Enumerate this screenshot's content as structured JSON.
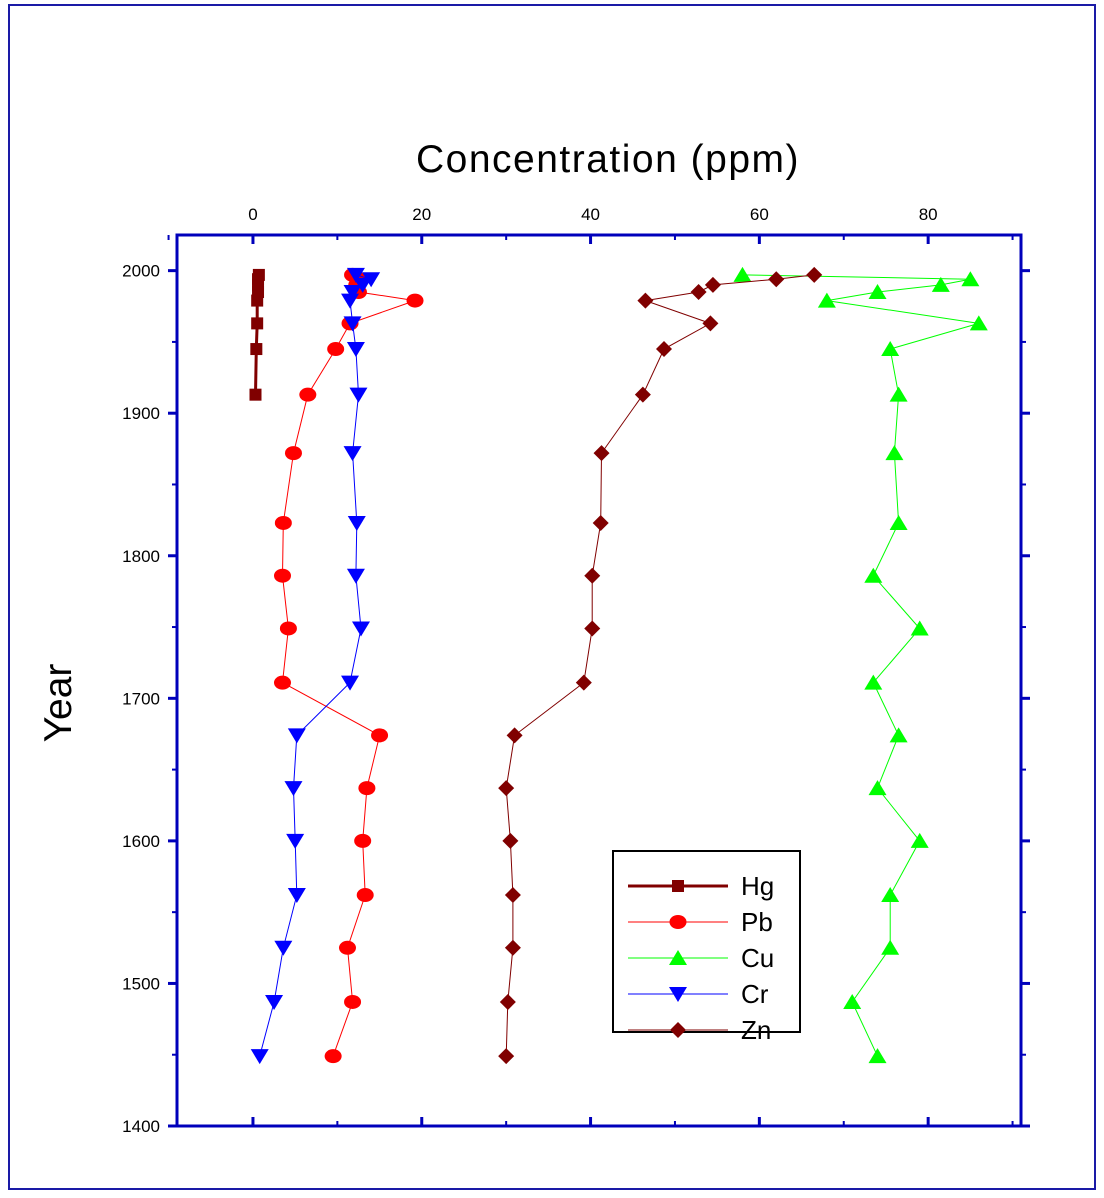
{
  "chart_data": {
    "type": "line",
    "xlabel": "Concentration (ppm)",
    "ylabel": "Year",
    "xlim": [
      -9,
      91
    ],
    "ylim": [
      1400,
      2025
    ],
    "x_ticks": [
      "0",
      "20",
      "40",
      "60",
      "80"
    ],
    "y_ticks": [
      "1400",
      "1500",
      "1600",
      "1700",
      "1800",
      "1900",
      "2000"
    ],
    "x_axis_position": "top",
    "legend_position": "bottom-right",
    "grid": false,
    "series": [
      {
        "name": "Hg",
        "color": "#800000",
        "marker": "square",
        "line_width": 3,
        "points": [
          [
            0.3,
            1913
          ],
          [
            0.4,
            1945
          ],
          [
            0.5,
            1963
          ],
          [
            0.5,
            1979
          ],
          [
            0.6,
            1985
          ],
          [
            0.6,
            1990
          ],
          [
            0.6,
            1994
          ],
          [
            0.7,
            1997
          ]
        ]
      },
      {
        "name": "Pb",
        "color": "#ff0000",
        "marker": "circle",
        "line_width": 1,
        "points": [
          [
            9.5,
            1449
          ],
          [
            11.8,
            1487
          ],
          [
            11.2,
            1525
          ],
          [
            13.3,
            1562
          ],
          [
            13.0,
            1600
          ],
          [
            13.5,
            1637
          ],
          [
            15.0,
            1674
          ],
          [
            3.5,
            1711
          ],
          [
            4.2,
            1749
          ],
          [
            3.5,
            1786
          ],
          [
            3.6,
            1823
          ],
          [
            4.8,
            1872
          ],
          [
            6.5,
            1913
          ],
          [
            9.8,
            1945
          ],
          [
            11.5,
            1963
          ],
          [
            19.2,
            1979
          ],
          [
            12.5,
            1985
          ],
          [
            12.3,
            1990
          ],
          [
            12.6,
            1994
          ],
          [
            11.8,
            1997
          ]
        ]
      },
      {
        "name": "Cu",
        "color": "#00ff00",
        "marker": "triangle-up",
        "line_width": 1,
        "points": [
          [
            74.0,
            1449
          ],
          [
            71.0,
            1487
          ],
          [
            75.5,
            1525
          ],
          [
            75.5,
            1562
          ],
          [
            79.0,
            1600
          ],
          [
            74.0,
            1637
          ],
          [
            76.5,
            1674
          ],
          [
            73.5,
            1711
          ],
          [
            79.0,
            1749
          ],
          [
            73.5,
            1786
          ],
          [
            76.5,
            1823
          ],
          [
            76.0,
            1872
          ],
          [
            76.5,
            1913
          ],
          [
            75.5,
            1945
          ],
          [
            86.0,
            1963
          ],
          [
            68.0,
            1979
          ],
          [
            74.0,
            1985
          ],
          [
            81.5,
            1990
          ],
          [
            85.0,
            1994
          ],
          [
            58.0,
            1997
          ]
        ]
      },
      {
        "name": "Cr",
        "color": "#0000ff",
        "marker": "triangle-down",
        "line_width": 1,
        "points": [
          [
            0.8,
            1449
          ],
          [
            2.5,
            1487
          ],
          [
            3.6,
            1525
          ],
          [
            5.2,
            1562
          ],
          [
            5.0,
            1600
          ],
          [
            4.8,
            1637
          ],
          [
            5.2,
            1674
          ],
          [
            11.5,
            1711
          ],
          [
            12.8,
            1749
          ],
          [
            12.2,
            1786
          ],
          [
            12.3,
            1823
          ],
          [
            11.8,
            1872
          ],
          [
            12.5,
            1913
          ],
          [
            12.2,
            1945
          ],
          [
            11.8,
            1963
          ],
          [
            11.5,
            1979
          ],
          [
            11.8,
            1985
          ],
          [
            13.0,
            1990
          ],
          [
            14.0,
            1994
          ],
          [
            12.2,
            1997
          ]
        ]
      },
      {
        "name": "Zn",
        "color": "#800000",
        "marker": "diamond",
        "line_width": 1,
        "points": [
          [
            30.0,
            1449
          ],
          [
            30.2,
            1487
          ],
          [
            30.8,
            1525
          ],
          [
            30.8,
            1562
          ],
          [
            30.5,
            1600
          ],
          [
            30.0,
            1637
          ],
          [
            31.0,
            1674
          ],
          [
            39.2,
            1711
          ],
          [
            40.2,
            1749
          ],
          [
            40.2,
            1786
          ],
          [
            41.2,
            1823
          ],
          [
            41.3,
            1872
          ],
          [
            46.2,
            1913
          ],
          [
            48.7,
            1945
          ],
          [
            54.2,
            1963
          ],
          [
            46.5,
            1979
          ],
          [
            52.8,
            1985
          ],
          [
            54.5,
            1990
          ],
          [
            62.0,
            1994
          ],
          [
            66.5,
            1997
          ]
        ]
      }
    ]
  }
}
